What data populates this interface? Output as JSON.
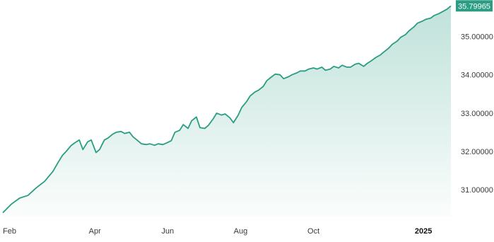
{
  "chart_data": {
    "type": "area",
    "x_tick_labels": [
      "Feb",
      "Apr",
      "Jun",
      "Aug",
      "Oct",
      "2025"
    ],
    "x_tick_bold": [
      "2025"
    ],
    "y_tick_labels": [
      "31.00000",
      "32.00000",
      "33.00000",
      "34.00000",
      "35.00000"
    ],
    "y_ticks": [
      31,
      32,
      33,
      34,
      35
    ],
    "ylim": [
      30.3,
      35.88
    ],
    "last_value_label": "35.79965",
    "grid": false,
    "x": [
      "2024-01-15",
      "2024-01-22",
      "2024-01-29",
      "2024-02-05",
      "2024-02-12",
      "2024-02-19",
      "2024-02-26",
      "2024-03-01",
      "2024-03-05",
      "2024-03-08",
      "2024-03-12",
      "2024-03-15",
      "2024-03-19",
      "2024-03-22",
      "2024-03-26",
      "2024-03-29",
      "2024-04-02",
      "2024-04-05",
      "2024-04-09",
      "2024-04-12",
      "2024-04-16",
      "2024-04-19",
      "2024-04-23",
      "2024-04-26",
      "2024-04-30",
      "2024-05-03",
      "2024-05-07",
      "2024-05-10",
      "2024-05-14",
      "2024-05-17",
      "2024-05-21",
      "2024-05-24",
      "2024-05-28",
      "2024-05-31",
      "2024-06-04",
      "2024-06-07",
      "2024-06-11",
      "2024-06-14",
      "2024-06-18",
      "2024-06-21",
      "2024-06-25",
      "2024-06-28",
      "2024-07-02",
      "2024-07-05",
      "2024-07-09",
      "2024-07-12",
      "2024-07-16",
      "2024-07-19",
      "2024-07-23",
      "2024-07-26",
      "2024-07-30",
      "2024-08-02",
      "2024-08-06",
      "2024-08-09",
      "2024-08-13",
      "2024-08-16",
      "2024-08-20",
      "2024-08-23",
      "2024-08-27",
      "2024-08-30",
      "2024-09-03",
      "2024-09-06",
      "2024-09-10",
      "2024-09-13",
      "2024-09-17",
      "2024-09-20",
      "2024-09-24",
      "2024-09-27",
      "2024-10-01",
      "2024-10-04",
      "2024-10-08",
      "2024-10-11",
      "2024-10-15",
      "2024-10-18",
      "2024-10-22",
      "2024-10-25",
      "2024-10-29",
      "2024-11-01",
      "2024-11-05",
      "2024-11-08",
      "2024-11-12",
      "2024-11-15",
      "2024-11-19",
      "2024-11-22",
      "2024-11-26",
      "2024-11-29",
      "2024-12-03",
      "2024-12-06",
      "2024-12-10",
      "2024-12-13",
      "2024-12-17",
      "2024-12-20",
      "2024-12-24",
      "2024-12-27",
      "2024-12-31",
      "2025-01-03",
      "2025-01-07",
      "2025-01-10",
      "2025-01-14",
      "2025-01-17",
      "2025-01-21",
      "2025-01-24"
    ],
    "y": [
      30.4,
      30.62,
      30.78,
      30.85,
      31.05,
      31.22,
      31.48,
      31.7,
      31.9,
      32.0,
      32.15,
      32.22,
      32.3,
      32.05,
      32.25,
      32.3,
      31.97,
      32.05,
      32.3,
      32.35,
      32.45,
      32.5,
      32.52,
      32.47,
      32.5,
      32.38,
      32.28,
      32.2,
      32.18,
      32.2,
      32.16,
      32.2,
      32.18,
      32.22,
      32.28,
      32.5,
      32.55,
      32.7,
      32.6,
      32.8,
      32.9,
      32.62,
      32.6,
      32.68,
      32.85,
      33.0,
      32.95,
      32.98,
      32.88,
      32.75,
      32.95,
      33.15,
      33.3,
      33.45,
      33.55,
      33.6,
      33.7,
      33.85,
      33.95,
      34.02,
      34.0,
      33.9,
      33.95,
      34.0,
      34.05,
      34.1,
      34.1,
      34.15,
      34.18,
      34.15,
      34.2,
      34.12,
      34.15,
      34.22,
      34.18,
      34.25,
      34.2,
      34.2,
      34.28,
      34.3,
      34.22,
      34.3,
      34.38,
      34.45,
      34.52,
      34.6,
      34.7,
      34.8,
      34.88,
      34.98,
      35.05,
      35.15,
      35.25,
      35.35,
      35.4,
      35.45,
      35.48,
      35.55,
      35.6,
      35.65,
      35.72,
      35.79965
    ],
    "colors": {
      "line": "#2a9d82",
      "fill_top": "#2a9d82",
      "badge": "#2a9d82"
    }
  }
}
